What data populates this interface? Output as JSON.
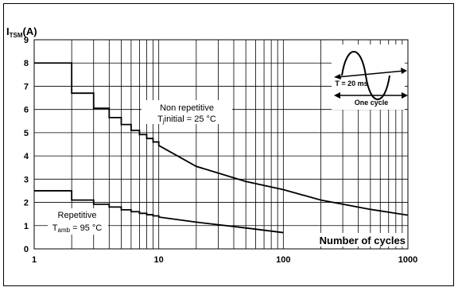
{
  "chart_data": {
    "type": "line",
    "ylabel": "I",
    "ylabel_sub": "TSM",
    "ylabel_unit": "(A)",
    "xlabel": "Number of cycles",
    "x_scale": "log",
    "xlim": [
      1,
      1000
    ],
    "ylim": [
      0,
      9
    ],
    "grid": true,
    "x_ticks": [
      "1",
      "10",
      "100",
      "1000"
    ],
    "y_ticks": [
      "0",
      "1",
      "2",
      "3",
      "4",
      "5",
      "6",
      "7",
      "8",
      "9"
    ],
    "series": [
      {
        "name_line1": "Non repetitive",
        "name_line2_prefix": "T",
        "name_line2_sub": "j",
        "name_line2_suffix": "initial = 25 °C",
        "x": [
          1,
          2,
          3,
          4,
          5,
          6,
          7,
          8,
          9,
          10,
          20,
          50,
          100,
          200,
          500,
          1000
        ],
        "y": [
          8.0,
          6.7,
          6.05,
          5.65,
          5.35,
          5.1,
          4.92,
          4.75,
          4.6,
          4.45,
          3.55,
          2.9,
          2.55,
          2.1,
          1.7,
          1.45
        ]
      },
      {
        "name_line1": "Repetitive",
        "name_line2_prefix": "T",
        "name_line2_sub": "amb",
        "name_line2_suffix": " = 95 °C",
        "x": [
          1,
          2,
          3,
          4,
          5,
          6,
          7,
          8,
          9,
          10,
          20,
          50,
          100
        ],
        "y": [
          2.5,
          2.1,
          1.92,
          1.8,
          1.68,
          1.6,
          1.53,
          1.47,
          1.42,
          1.37,
          1.15,
          0.9,
          0.7
        ]
      }
    ],
    "inset": {
      "period_label": "T = 20 ms",
      "cycle_label": "One cycle"
    }
  }
}
